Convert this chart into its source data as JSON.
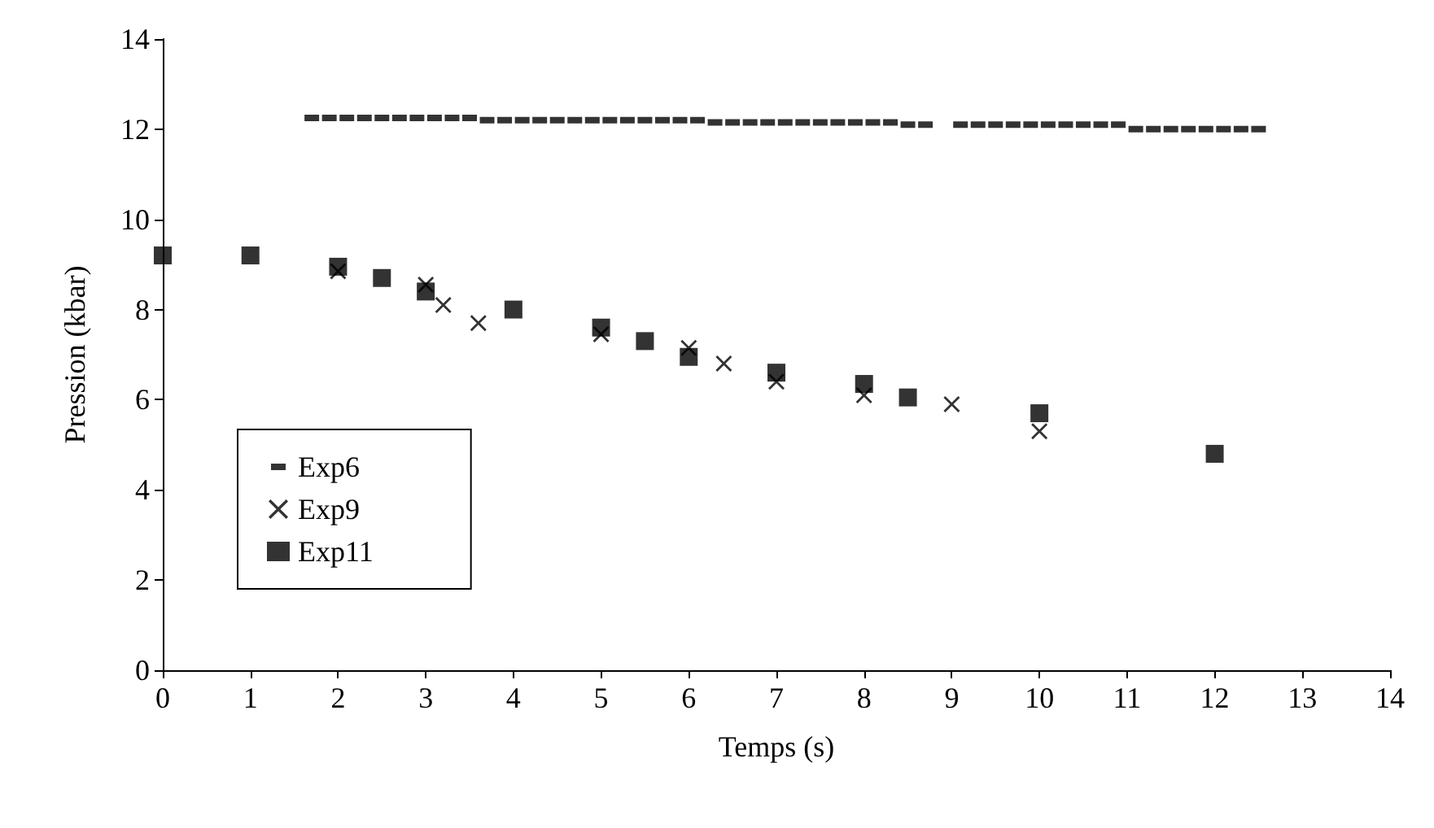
{
  "chart_data": {
    "type": "scatter",
    "xlabel": "Temps (s)",
    "ylabel": "Pression (kbar)",
    "xlim": [
      0,
      14
    ],
    "xticks": [
      0,
      1,
      2,
      3,
      4,
      5,
      6,
      7,
      8,
      9,
      10,
      11,
      12,
      13,
      14
    ],
    "ylim": [
      0,
      14
    ],
    "yticks": [
      0,
      2,
      4,
      6,
      8,
      10,
      12,
      14
    ],
    "grid": false,
    "legend": "bottom left",
    "series": [
      {
        "name": "Exp6",
        "color": "#000000",
        "x": [
          1.7,
          1.9,
          2.1,
          2.3,
          2.5,
          2.7,
          2.9,
          3.1,
          3.3,
          3.5,
          3.7,
          3.9,
          4.1,
          4.3,
          4.5,
          4.7,
          4.9,
          5.1,
          5.3,
          5.5,
          5.7,
          5.9,
          6.1,
          6.3,
          6.5,
          6.7,
          6.9,
          7.1,
          7.3,
          7.5,
          7.7,
          7.9,
          8.1,
          8.3,
          8.5,
          8.7,
          9.1,
          9.3,
          9.5,
          9.7,
          9.9,
          10.1,
          10.3,
          10.5,
          10.7,
          10.9,
          11.1,
          11.3,
          11.5,
          11.7,
          11.9,
          12.1,
          12.3,
          12.5
        ],
        "values": [
          12.25,
          12.25,
          12.25,
          12.25,
          12.25,
          12.25,
          12.25,
          12.25,
          12.25,
          12.25,
          12.2,
          12.2,
          12.2,
          12.2,
          12.2,
          12.2,
          12.2,
          12.2,
          12.2,
          12.2,
          12.2,
          12.2,
          12.2,
          12.15,
          12.15,
          12.15,
          12.15,
          12.15,
          12.15,
          12.15,
          12.15,
          12.15,
          12.15,
          12.15,
          12.1,
          12.1,
          12.1,
          12.1,
          12.1,
          12.1,
          12.1,
          12.1,
          12.1,
          12.1,
          12.1,
          12.1,
          12.0,
          12.0,
          12.0,
          12.0,
          12.0,
          12.0,
          12.0,
          12.0
        ]
      },
      {
        "name": "Exp9",
        "color": "#000000",
        "marker": "cross",
        "x": [
          2,
          3,
          3.2,
          3.6,
          5,
          6,
          6.4,
          7,
          8,
          9,
          10
        ],
        "values": [
          8.85,
          8.55,
          8.1,
          7.7,
          7.45,
          7.15,
          6.8,
          6.4,
          6.1,
          5.9,
          5.3
        ]
      },
      {
        "name": "Exp11",
        "color": "#000000",
        "marker": "square",
        "x": [
          0,
          1,
          2,
          2.5,
          3,
          4,
          5,
          5.5,
          6,
          7,
          8,
          8.5,
          10,
          12
        ],
        "values": [
          9.2,
          9.2,
          8.95,
          8.7,
          8.4,
          8.0,
          7.6,
          7.3,
          6.95,
          6.6,
          6.35,
          6.05,
          5.7,
          4.8
        ]
      }
    ]
  }
}
